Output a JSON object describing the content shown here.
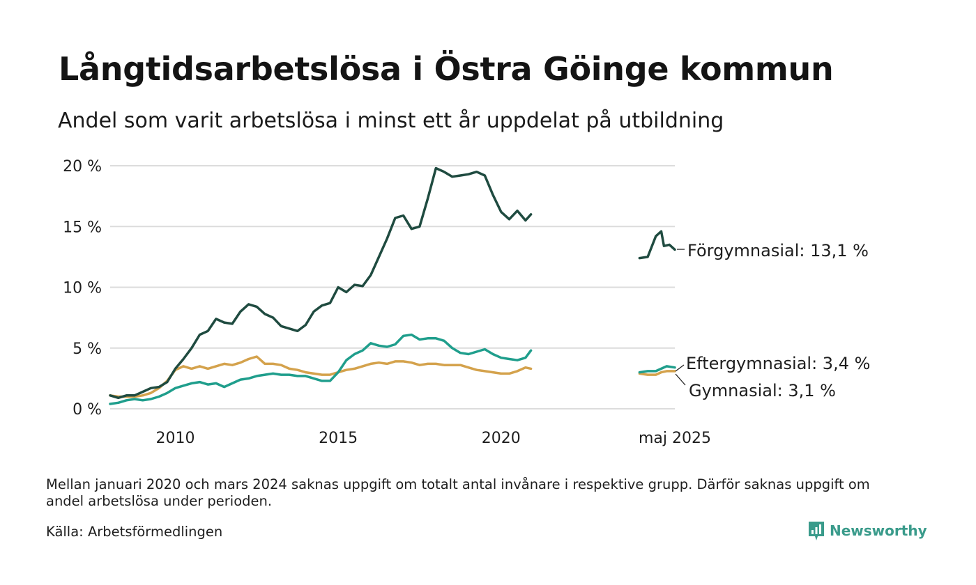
{
  "header": {
    "title": "Långtidsarbetslösa i Östra Göinge kommun",
    "subtitle": "Andel som varit arbetslösa i minst ett år uppdelat på utbildning"
  },
  "footer": {
    "note": "Mellan januari 2020 och mars 2024 saknas uppgift om totalt antal invånare i respektive grupp. Därför saknas uppgift om andel arbetslösa under perioden.",
    "source": "Källa: Arbetsförmedlingen",
    "brand": "Newsworthy",
    "brand_icon": "newsworthy-logo-icon"
  },
  "colors": {
    "forgymnasial": "#1f4b40",
    "eftergymnasial": "#1f9e8c",
    "gymnasial": "#d4a24c",
    "grid": "#dcdcdc",
    "brand": "#3a9b8b"
  },
  "chart_data": {
    "type": "line",
    "xlabel": "",
    "ylabel": "",
    "ylim": [
      0,
      20
    ],
    "xlim": [
      "2008-01",
      "2025-05"
    ],
    "yticks": [
      "0 %",
      "5 %",
      "10 %",
      "15 %",
      "20 %"
    ],
    "xticks": [
      {
        "x": "2010-01",
        "label": "2010"
      },
      {
        "x": "2015-01",
        "label": "2015"
      },
      {
        "x": "2020-01",
        "label": "2020"
      },
      {
        "x": "2025-05",
        "label": "maj 2025"
      }
    ],
    "grid": true,
    "legend": "direct labels at line ends",
    "series": [
      {
        "name": "Förgymnasial",
        "end_label": "Förgymnasial: 13,1 %",
        "color": "#1f4b40",
        "segments": [
          [
            [
              "2008-01",
              1.1
            ],
            [
              "2008-04",
              0.9
            ],
            [
              "2008-07",
              1.1
            ],
            [
              "2008-10",
              1.1
            ],
            [
              "2009-01",
              1.4
            ],
            [
              "2009-04",
              1.7
            ],
            [
              "2009-07",
              1.8
            ],
            [
              "2009-10",
              2.2
            ],
            [
              "2010-01",
              3.3
            ],
            [
              "2010-04",
              4.1
            ],
            [
              "2010-07",
              5.0
            ],
            [
              "2010-10",
              6.1
            ],
            [
              "2011-01",
              6.4
            ],
            [
              "2011-04",
              7.4
            ],
            [
              "2011-07",
              7.1
            ],
            [
              "2011-10",
              7.0
            ],
            [
              "2012-01",
              8.0
            ],
            [
              "2012-04",
              8.6
            ],
            [
              "2012-07",
              8.4
            ],
            [
              "2012-10",
              7.8
            ],
            [
              "2013-01",
              7.5
            ],
            [
              "2013-04",
              6.8
            ],
            [
              "2013-07",
              6.6
            ],
            [
              "2013-10",
              6.4
            ],
            [
              "2014-01",
              6.9
            ],
            [
              "2014-04",
              8.0
            ],
            [
              "2014-07",
              8.5
            ],
            [
              "2014-10",
              8.7
            ],
            [
              "2015-01",
              10.0
            ],
            [
              "2015-04",
              9.6
            ],
            [
              "2015-07",
              10.2
            ],
            [
              "2015-10",
              10.1
            ],
            [
              "2016-01",
              11.0
            ],
            [
              "2016-04",
              12.5
            ],
            [
              "2016-07",
              14.0
            ],
            [
              "2016-10",
              15.7
            ],
            [
              "2017-01",
              15.9
            ],
            [
              "2017-04",
              14.8
            ],
            [
              "2017-07",
              15.0
            ],
            [
              "2017-10",
              17.3
            ],
            [
              "2018-01",
              19.8
            ],
            [
              "2018-04",
              19.5
            ],
            [
              "2018-07",
              19.1
            ],
            [
              "2018-10",
              19.2
            ],
            [
              "2019-01",
              19.3
            ],
            [
              "2019-04",
              19.5
            ],
            [
              "2019-07",
              19.2
            ],
            [
              "2019-10",
              17.6
            ],
            [
              "2020-01",
              16.2
            ],
            [
              "2020-04",
              15.6
            ],
            [
              "2020-07",
              16.3
            ],
            [
              "2020-10",
              15.5
            ],
            [
              "2020-12",
              16.0
            ]
          ],
          [
            [
              "2024-04",
              12.4
            ],
            [
              "2024-07",
              12.5
            ],
            [
              "2024-10",
              14.2
            ],
            [
              "2024-12",
              14.6
            ],
            [
              "2025-01",
              13.4
            ],
            [
              "2025-03",
              13.5
            ],
            [
              "2025-05",
              13.1
            ]
          ]
        ]
      },
      {
        "name": "Eftergymnasial",
        "end_label": "Eftergymnasial:  3,4 %",
        "color": "#1f9e8c",
        "segments": [
          [
            [
              "2008-01",
              0.4
            ],
            [
              "2008-04",
              0.5
            ],
            [
              "2008-07",
              0.7
            ],
            [
              "2008-10",
              0.8
            ],
            [
              "2009-01",
              0.7
            ],
            [
              "2009-04",
              0.8
            ],
            [
              "2009-07",
              1.0
            ],
            [
              "2009-10",
              1.3
            ],
            [
              "2010-01",
              1.7
            ],
            [
              "2010-04",
              1.9
            ],
            [
              "2010-07",
              2.1
            ],
            [
              "2010-10",
              2.2
            ],
            [
              "2011-01",
              2.0
            ],
            [
              "2011-04",
              2.1
            ],
            [
              "2011-07",
              1.8
            ],
            [
              "2011-10",
              2.1
            ],
            [
              "2012-01",
              2.4
            ],
            [
              "2012-04",
              2.5
            ],
            [
              "2012-07",
              2.7
            ],
            [
              "2012-10",
              2.8
            ],
            [
              "2013-01",
              2.9
            ],
            [
              "2013-04",
              2.8
            ],
            [
              "2013-07",
              2.8
            ],
            [
              "2013-10",
              2.7
            ],
            [
              "2014-01",
              2.7
            ],
            [
              "2014-04",
              2.5
            ],
            [
              "2014-07",
              2.3
            ],
            [
              "2014-10",
              2.3
            ],
            [
              "2015-01",
              3.0
            ],
            [
              "2015-04",
              4.0
            ],
            [
              "2015-07",
              4.5
            ],
            [
              "2015-10",
              4.8
            ],
            [
              "2016-01",
              5.4
            ],
            [
              "2016-04",
              5.2
            ],
            [
              "2016-07",
              5.1
            ],
            [
              "2016-10",
              5.3
            ],
            [
              "2017-01",
              6.0
            ],
            [
              "2017-04",
              6.1
            ],
            [
              "2017-07",
              5.7
            ],
            [
              "2017-10",
              5.8
            ],
            [
              "2018-01",
              5.8
            ],
            [
              "2018-04",
              5.6
            ],
            [
              "2018-07",
              5.0
            ],
            [
              "2018-10",
              4.6
            ],
            [
              "2019-01",
              4.5
            ],
            [
              "2019-04",
              4.7
            ],
            [
              "2019-07",
              4.9
            ],
            [
              "2019-10",
              4.5
            ],
            [
              "2020-01",
              4.2
            ],
            [
              "2020-04",
              4.1
            ],
            [
              "2020-07",
              4.0
            ],
            [
              "2020-10",
              4.2
            ],
            [
              "2020-12",
              4.8
            ]
          ],
          [
            [
              "2024-04",
              3.0
            ],
            [
              "2024-07",
              3.1
            ],
            [
              "2024-10",
              3.1
            ],
            [
              "2024-12",
              3.3
            ],
            [
              "2025-02",
              3.5
            ],
            [
              "2025-05",
              3.4
            ]
          ]
        ]
      },
      {
        "name": "Gymnasial",
        "end_label": "Gymnasial:  3,1 %",
        "color": "#d4a24c",
        "segments": [
          [
            [
              "2008-01",
              1.1
            ],
            [
              "2008-04",
              1.0
            ],
            [
              "2008-07",
              1.0
            ],
            [
              "2008-10",
              1.0
            ],
            [
              "2009-01",
              1.1
            ],
            [
              "2009-04",
              1.3
            ],
            [
              "2009-07",
              1.7
            ],
            [
              "2009-10",
              2.3
            ],
            [
              "2010-01",
              3.2
            ],
            [
              "2010-04",
              3.5
            ],
            [
              "2010-07",
              3.3
            ],
            [
              "2010-10",
              3.5
            ],
            [
              "2011-01",
              3.3
            ],
            [
              "2011-04",
              3.5
            ],
            [
              "2011-07",
              3.7
            ],
            [
              "2011-10",
              3.6
            ],
            [
              "2012-01",
              3.8
            ],
            [
              "2012-04",
              4.1
            ],
            [
              "2012-07",
              4.3
            ],
            [
              "2012-10",
              3.7
            ],
            [
              "2013-01",
              3.7
            ],
            [
              "2013-04",
              3.6
            ],
            [
              "2013-07",
              3.3
            ],
            [
              "2013-10",
              3.2
            ],
            [
              "2014-01",
              3.0
            ],
            [
              "2014-04",
              2.9
            ],
            [
              "2014-07",
              2.8
            ],
            [
              "2014-10",
              2.8
            ],
            [
              "2015-01",
              3.0
            ],
            [
              "2015-04",
              3.2
            ],
            [
              "2015-07",
              3.3
            ],
            [
              "2015-10",
              3.5
            ],
            [
              "2016-01",
              3.7
            ],
            [
              "2016-04",
              3.8
            ],
            [
              "2016-07",
              3.7
            ],
            [
              "2016-10",
              3.9
            ],
            [
              "2017-01",
              3.9
            ],
            [
              "2017-04",
              3.8
            ],
            [
              "2017-07",
              3.6
            ],
            [
              "2017-10",
              3.7
            ],
            [
              "2018-01",
              3.7
            ],
            [
              "2018-04",
              3.6
            ],
            [
              "2018-07",
              3.6
            ],
            [
              "2018-10",
              3.6
            ],
            [
              "2019-01",
              3.4
            ],
            [
              "2019-04",
              3.2
            ],
            [
              "2019-07",
              3.1
            ],
            [
              "2019-10",
              3.0
            ],
            [
              "2020-01",
              2.9
            ],
            [
              "2020-04",
              2.9
            ],
            [
              "2020-07",
              3.1
            ],
            [
              "2020-10",
              3.4
            ],
            [
              "2020-12",
              3.3
            ]
          ],
          [
            [
              "2024-04",
              2.9
            ],
            [
              "2024-07",
              2.8
            ],
            [
              "2024-10",
              2.8
            ],
            [
              "2024-12",
              3.0
            ],
            [
              "2025-02",
              3.1
            ],
            [
              "2025-05",
              3.1
            ]
          ]
        ]
      }
    ]
  }
}
